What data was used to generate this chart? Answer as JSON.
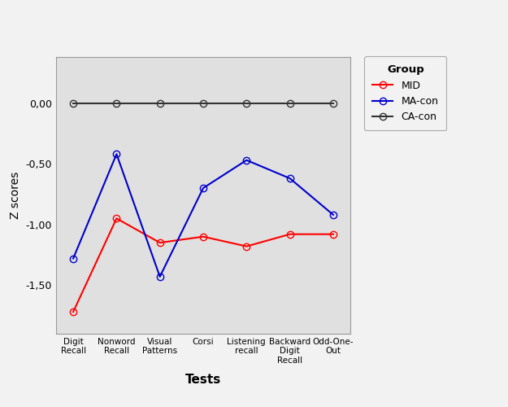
{
  "categories": [
    "Digit\nRecall",
    "Nonword\nRecall",
    "Visual\nPatterns",
    "Corsi",
    "Listening\nrecall",
    "Backward\nDigit\nRecall",
    "Odd-One-\nOut"
  ],
  "MID": [
    -1.72,
    -0.95,
    -1.15,
    -1.1,
    -1.18,
    -1.08,
    -1.08
  ],
  "MA_con": [
    -1.28,
    -0.42,
    -1.43,
    -0.7,
    -0.47,
    -0.62,
    -0.92
  ],
  "CA_con": [
    0.0,
    0.0,
    0.0,
    0.0,
    0.0,
    0.0,
    0.0
  ],
  "MID_color": "#ff0000",
  "MA_con_color": "#0000cc",
  "CA_con_color": "#333333",
  "ylabel": "Z scores",
  "xlabel": "Tests",
  "legend_title": "Group",
  "ylim": [
    -1.9,
    0.38
  ],
  "yticks": [
    0.0,
    -0.5,
    -1.0,
    -1.5
  ],
  "ytick_labels": [
    "0,00",
    "-0,50",
    "-1,00",
    "-1,50"
  ],
  "plot_bg_color": "#e0e0e0",
  "fig_bg_color": "#f2f2f2",
  "marker": "o",
  "linewidth": 1.5,
  "markersize": 6
}
